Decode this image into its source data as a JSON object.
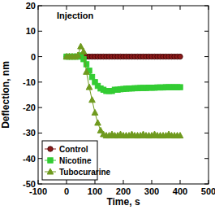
{
  "chart_data": {
    "type": "line",
    "title": "Injection",
    "x_label": "Time, s",
    "y_label": "Deflection, nm",
    "x": [
      0,
      10,
      20,
      30,
      40,
      50,
      60,
      70,
      80,
      90,
      100,
      110,
      120,
      130,
      140,
      150,
      160,
      170,
      180,
      190,
      200,
      210,
      220,
      230,
      240,
      250,
      260,
      270,
      280,
      290,
      300,
      310,
      320,
      330,
      340,
      350,
      360,
      370,
      380,
      390,
      400
    ],
    "series": [
      {
        "name": "Control",
        "color": "#8b1a1a",
        "marker": "circle",
        "values": [
          0,
          0,
          0,
          0,
          0,
          0,
          0,
          0,
          0,
          0,
          0,
          0,
          0,
          0,
          0,
          0,
          0,
          0,
          0,
          0,
          0,
          0,
          0,
          0,
          0,
          0,
          0,
          0,
          0,
          0,
          0,
          0,
          0,
          0,
          0,
          0,
          0,
          0,
          0,
          0,
          0
        ]
      },
      {
        "name": "Nicotine",
        "color": "#33cc33",
        "marker": "square",
        "values": [
          0,
          0,
          0,
          0,
          0,
          0.5,
          -1,
          -3,
          -5.5,
          -8,
          -10,
          -11.5,
          -12.5,
          -13,
          -13.5,
          -13.5,
          -13.5,
          -13,
          -13,
          -12.8,
          -12.7,
          -12.6,
          -12.5,
          -12.5,
          -12.4,
          -12.4,
          -12.3,
          -12.3,
          -12.3,
          -12.2,
          -12.2,
          -12.2,
          -12.1,
          -12.1,
          -12.1,
          -12,
          -12,
          -12,
          -12,
          -12,
          -12
        ]
      },
      {
        "name": "Tubocurarine",
        "color": "#6f9a1e",
        "marker": "triangle",
        "values": [
          0,
          0,
          0,
          0,
          0.5,
          4,
          2,
          -6,
          -12,
          -17,
          -22,
          -26,
          -29,
          -30.5,
          -31,
          -31,
          -30.5,
          -31,
          -31,
          -30.5,
          -31,
          -31,
          -31,
          -30.5,
          -31,
          -31,
          -31,
          -30.5,
          -31,
          -31,
          -31,
          -30.5,
          -31,
          -31,
          -31,
          -31,
          -30.5,
          -31,
          -31,
          -31,
          -31
        ]
      }
    ],
    "xlim": [
      -100,
      500
    ],
    "xticks": [
      -100,
      0,
      100,
      200,
      300,
      400,
      500
    ],
    "ylim": [
      -50,
      20
    ],
    "yticks": [
      -50,
      -40,
      -30,
      -20,
      -10,
      0,
      10,
      20
    ],
    "legend": "lower left",
    "grid": false
  }
}
